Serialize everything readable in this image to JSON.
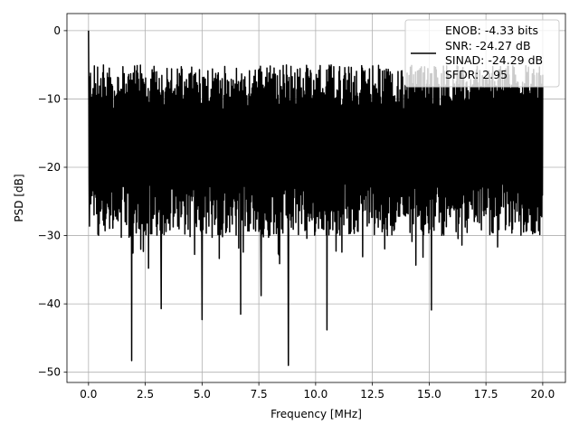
{
  "chart_data": {
    "type": "line",
    "title": "",
    "xlabel": "Frequency [MHz]",
    "ylabel": "PSD [dB]",
    "xlim": [
      -0.95,
      21.0
    ],
    "ylim": [
      -51.5,
      2.5
    ],
    "xticks": [
      0.0,
      2.5,
      5.0,
      7.5,
      10.0,
      12.5,
      15.0,
      17.5,
      20.0
    ],
    "xtick_labels": [
      "0.0",
      "2.5",
      "5.0",
      "7.5",
      "10.0",
      "12.5",
      "15.0",
      "17.5",
      "20.0"
    ],
    "yticks": [
      0,
      -10,
      -20,
      -30,
      -40,
      -50
    ],
    "ytick_labels": [
      "0",
      "−10",
      "−20",
      "−30",
      "−40",
      "−50"
    ],
    "grid": true,
    "legend_position": "top-right",
    "legend_lines": [
      "ENOB: -4.33 bits",
      "SNR: -24.27 dB",
      "SINAD: -24.29 dB",
      "SFDR: 2.95"
    ],
    "series": [
      {
        "color": "#000000",
        "description": "Noise-like PSD from 0 to 20 MHz; peak 0 dB at 0 MHz, mostly between about -28 and -8 dB, deep dips below -35 dB",
        "x_range": [
          0.0,
          20.0
        ],
        "peak": {
          "x": 0.0,
          "y": 0.0
        },
        "band": {
          "low": -28,
          "high": -8
        },
        "notable_dips": [
          {
            "x": 1.9,
            "y": -48.3
          },
          {
            "x": 3.2,
            "y": -40.7
          },
          {
            "x": 5.0,
            "y": -42.3
          },
          {
            "x": 6.7,
            "y": -41.5
          },
          {
            "x": 7.6,
            "y": -38.8
          },
          {
            "x": 8.8,
            "y": -49.0
          },
          {
            "x": 10.5,
            "y": -43.8
          },
          {
            "x": 15.1,
            "y": -40.9
          }
        ]
      }
    ]
  }
}
